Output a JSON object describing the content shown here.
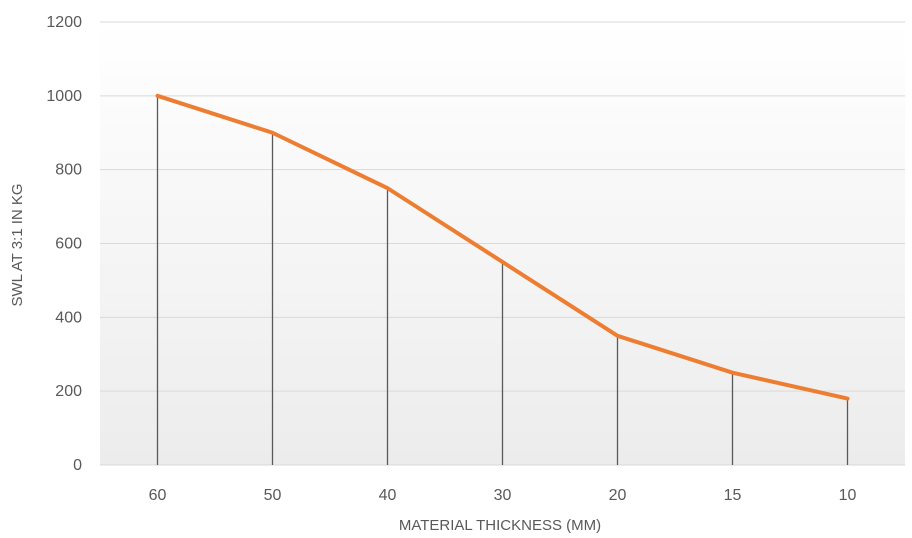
{
  "chart_data": {
    "type": "line",
    "title": "",
    "xlabel": "MATERIAL THICKNESS (MM)",
    "ylabel": "SWL AT 3:1 IN KG",
    "categories": [
      "60",
      "50",
      "40",
      "30",
      "20",
      "15",
      "10"
    ],
    "series": [
      {
        "values": [
          1000,
          900,
          750,
          550,
          350,
          250,
          180
        ],
        "color": "#ED7D31"
      }
    ],
    "ylim": [
      0,
      1200
    ],
    "yticks": [
      0,
      200,
      400,
      600,
      800,
      1000,
      1200
    ],
    "grid": true,
    "drop_lines": true,
    "drop_line_color": "#595959",
    "gridline_color": "#D9D9D9",
    "plot_background": "gradient white to light gray"
  }
}
